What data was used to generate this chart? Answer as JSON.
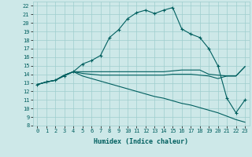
{
  "xlabel": "Humidex (Indice chaleur)",
  "bg_color": "#cde8e8",
  "grid_color": "#9ecece",
  "line_color": "#005f5f",
  "xlim": [
    -0.5,
    23.5
  ],
  "ylim": [
    8,
    22.5
  ],
  "y_ticks": [
    8,
    9,
    10,
    11,
    12,
    13,
    14,
    15,
    16,
    17,
    18,
    19,
    20,
    21,
    22
  ],
  "x_ticks": [
    0,
    1,
    2,
    3,
    4,
    5,
    6,
    7,
    8,
    9,
    10,
    11,
    12,
    13,
    14,
    15,
    16,
    17,
    18,
    19,
    20,
    21,
    22,
    23
  ],
  "series": {
    "humidex_marked": [
      12.8,
      13.1,
      13.3,
      13.8,
      14.3,
      15.2,
      15.6,
      16.2,
      18.3,
      19.2,
      20.5,
      21.2,
      21.5,
      21.1,
      21.5,
      21.8,
      19.3,
      18.7,
      18.3,
      17.0,
      15.0,
      11.2,
      9.5,
      11.0
    ],
    "temp_flat": [
      12.8,
      13.1,
      13.3,
      13.9,
      14.3,
      14.3,
      14.3,
      14.3,
      14.3,
      14.3,
      14.3,
      14.3,
      14.3,
      14.3,
      14.3,
      14.4,
      14.5,
      14.5,
      14.5,
      14.0,
      13.9,
      13.8,
      13.8,
      14.9
    ],
    "temp_flat2": [
      12.8,
      13.1,
      13.3,
      13.9,
      14.3,
      14.1,
      14.0,
      13.9,
      13.9,
      13.9,
      13.9,
      13.9,
      13.9,
      13.9,
      13.9,
      14.0,
      14.0,
      14.0,
      13.9,
      13.8,
      13.5,
      13.8,
      13.8,
      14.9
    ],
    "dew_descend": [
      12.8,
      13.1,
      13.3,
      13.9,
      14.3,
      13.8,
      13.5,
      13.2,
      12.9,
      12.6,
      12.3,
      12.0,
      11.7,
      11.4,
      11.2,
      10.9,
      10.6,
      10.4,
      10.1,
      9.8,
      9.5,
      9.1,
      8.7,
      8.4
    ]
  }
}
